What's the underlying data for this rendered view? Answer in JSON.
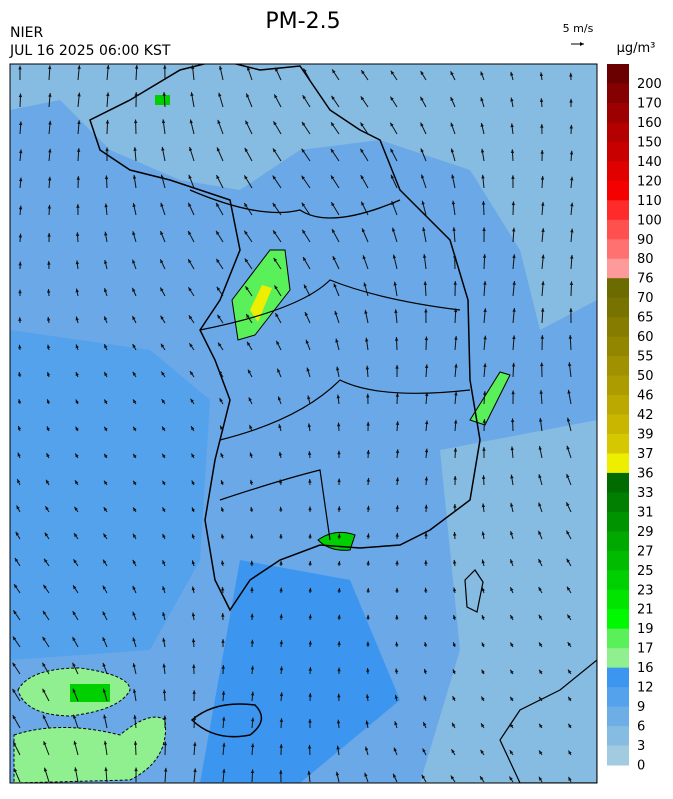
{
  "header": {
    "title": "PM-2.5",
    "source": "NIER",
    "datetime": "JUL 16 2025 06:00 KST",
    "wind_scale": "5 m/s"
  },
  "legend": {
    "unit": "μg/m³",
    "labels": [
      200,
      170,
      160,
      150,
      140,
      120,
      110,
      100,
      90,
      80,
      76,
      70,
      65,
      60,
      55,
      50,
      46,
      42,
      39,
      37,
      36,
      33,
      31,
      29,
      27,
      25,
      23,
      21,
      19,
      17,
      16,
      12,
      9,
      6,
      3,
      0
    ],
    "colors": [
      "#6b0000",
      "#850000",
      "#9c0000",
      "#b30000",
      "#c90000",
      "#e00000",
      "#f50000",
      "#ff2a2a",
      "#ff4f4f",
      "#ff7070",
      "#ff9a9a",
      "#6b6b00",
      "#787300",
      "#857c00",
      "#928600",
      "#a09100",
      "#ad9c00",
      "#bba900",
      "#c8b600",
      "#d6c800",
      "#eeee00",
      "#006b00",
      "#007f00",
      "#009300",
      "#00a800",
      "#00bc00",
      "#00d000",
      "#00e400",
      "#00f800",
      "#5af05a",
      "#90f090",
      "#3c96f0",
      "#55a2ec",
      "#6eaee6",
      "#86bbe2",
      "#a2cbe2"
    ]
  }
}
